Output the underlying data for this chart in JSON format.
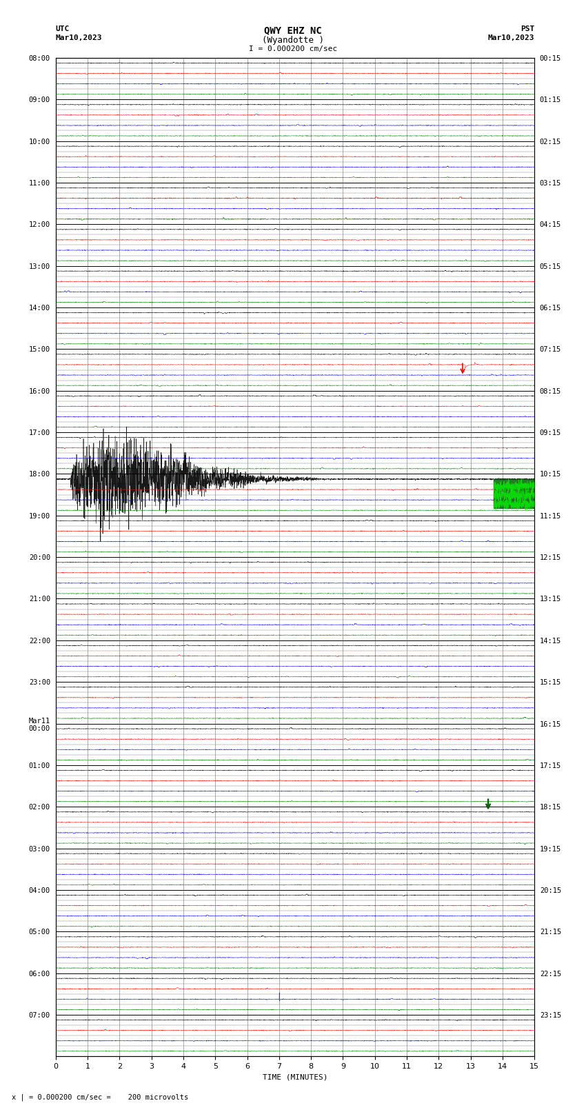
{
  "title_line1": "QWY EHZ NC",
  "title_line2": "(Wyandotte )",
  "scale_label": "I = 0.000200 cm/sec",
  "utc_label_line1": "UTC",
  "utc_label_line2": "Mar10,2023",
  "pst_label_line1": "PST",
  "pst_label_line2": "Mar10,2023",
  "xlabel": "TIME (MINUTES)",
  "bottom_note": "x | = 0.000200 cm/sec =    200 microvolts",
  "left_times": [
    "08:00",
    "09:00",
    "10:00",
    "11:00",
    "12:00",
    "13:00",
    "14:00",
    "15:00",
    "16:00",
    "17:00",
    "18:00",
    "19:00",
    "20:00",
    "21:00",
    "22:00",
    "23:00",
    "Mar11\n00:00",
    "01:00",
    "02:00",
    "03:00",
    "04:00",
    "05:00",
    "06:00",
    "07:00"
  ],
  "right_times": [
    "00:15",
    "01:15",
    "02:15",
    "03:15",
    "04:15",
    "05:15",
    "06:15",
    "07:15",
    "08:15",
    "09:15",
    "10:15",
    "11:15",
    "12:15",
    "13:15",
    "14:15",
    "15:15",
    "16:15",
    "17:15",
    "18:15",
    "19:15",
    "20:15",
    "21:15",
    "22:15",
    "23:15"
  ],
  "n_rows": 24,
  "n_traces_per_row": 4,
  "minutes": 15,
  "colors": [
    "black",
    "red",
    "blue",
    "green"
  ],
  "fig_bg": "white",
  "plot_bg": "white",
  "grid_color": "#888888",
  "tick_major": [
    0,
    1,
    2,
    3,
    4,
    5,
    6,
    7,
    8,
    9,
    10,
    11,
    12,
    13,
    14,
    15
  ],
  "trace_amplitude": 0.18,
  "trace_noise_std": 0.08,
  "linewidth": 0.35
}
